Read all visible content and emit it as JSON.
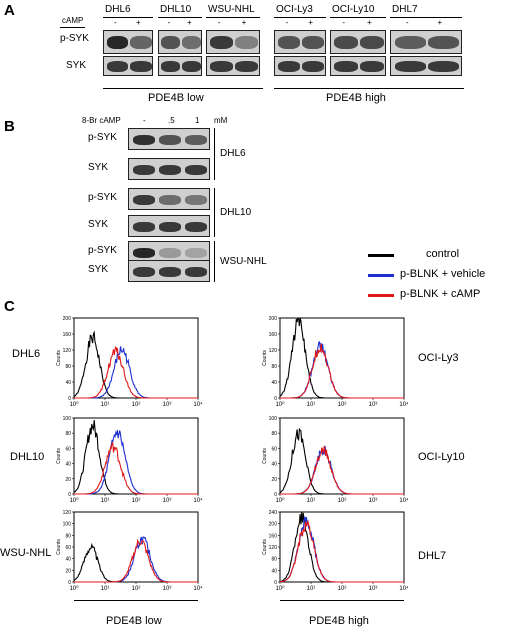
{
  "panels": {
    "a": "A",
    "b": "B",
    "c": "C"
  },
  "panel_a": {
    "row_treatment_label": "cAMP",
    "row_labels": [
      "p-SYK",
      "SYK"
    ],
    "lanes": [
      "-",
      "+"
    ],
    "cell_lines": [
      "DHL6",
      "DHL10",
      "WSU-NHL",
      "OCI-Ly3",
      "OCI-Ly10",
      "DHL7"
    ],
    "groups": [
      "PDE4B low",
      "PDE4B high"
    ]
  },
  "panel_b": {
    "treatment_label": "8-Br cAMP",
    "doses": [
      "-",
      ".5",
      "1"
    ],
    "unit": "mM",
    "row_labels": [
      "p-SYK",
      "SYK"
    ],
    "cell_lines": [
      "DHL6",
      "DHL10",
      "WSU-NHL"
    ]
  },
  "legend": {
    "entries": [
      {
        "label": "control",
        "color": "#000000"
      },
      {
        "label": "p-BLNK + vehicle",
        "color": "#1f2fd0"
      },
      {
        "label": "p-BLNK  + cAMP",
        "color": "#e01818"
      }
    ]
  },
  "panel_c": {
    "ylabel": "Counts",
    "groups": [
      "PDE4B low",
      "PDE4B high"
    ],
    "x_ticks": [
      "10⁰",
      "10¹",
      "10²",
      "10³",
      "10⁴"
    ],
    "left_labels": [
      "DHL6",
      "DHL10",
      "WSU-NHL"
    ],
    "right_labels": [
      "OCI-Ly3",
      "OCI-Ly10",
      "DHL7"
    ]
  },
  "chart_data": [
    {
      "type": "line",
      "name": "DHL6",
      "xscale": "log",
      "xlim": [
        1,
        10000
      ],
      "yticks": [
        0,
        40,
        80,
        120,
        160,
        200
      ],
      "ylim": [
        0,
        200
      ],
      "series": [
        {
          "name": "control",
          "peak_x": 4,
          "peak_y": 150
        },
        {
          "name": "p-BLNK + vehicle",
          "peak_x": 35,
          "peak_y": 120
        },
        {
          "name": "p-BLNK  + cAMP",
          "peak_x": 22,
          "peak_y": 115
        }
      ]
    },
    {
      "type": "line",
      "name": "DHL10",
      "xscale": "log",
      "xlim": [
        1,
        10000
      ],
      "yticks": [
        0,
        20,
        40,
        60,
        80,
        100
      ],
      "ylim": [
        0,
        100
      ],
      "series": [
        {
          "name": "control",
          "peak_x": 4,
          "peak_y": 90
        },
        {
          "name": "p-BLNK + vehicle",
          "peak_x": 25,
          "peak_y": 80
        },
        {
          "name": "p-BLNK  + cAMP",
          "peak_x": 18,
          "peak_y": 62
        }
      ]
    },
    {
      "type": "line",
      "name": "WSU-NHL",
      "xscale": "log",
      "xlim": [
        1,
        10000
      ],
      "yticks": [
        0,
        20,
        40,
        60,
        80,
        100,
        120
      ],
      "ylim": [
        0,
        120
      ],
      "series": [
        {
          "name": "control",
          "peak_x": 3.5,
          "peak_y": 60
        },
        {
          "name": "p-BLNK + vehicle",
          "peak_x": 160,
          "peak_y": 73
        },
        {
          "name": "p-BLNK  + cAMP",
          "peak_x": 140,
          "peak_y": 70
        }
      ]
    },
    {
      "type": "line",
      "name": "OCI-Ly3",
      "xscale": "log",
      "xlim": [
        1,
        10000
      ],
      "yticks": [
        0,
        40,
        80,
        120,
        160,
        200
      ],
      "ylim": [
        0,
        200
      ],
      "series": [
        {
          "name": "control",
          "peak_x": 4,
          "peak_y": 190
        },
        {
          "name": "p-BLNK + vehicle",
          "peak_x": 20,
          "peak_y": 130
        },
        {
          "name": "p-BLNK  + cAMP",
          "peak_x": 20,
          "peak_y": 128
        }
      ]
    },
    {
      "type": "line",
      "name": "OCI-Ly10",
      "xscale": "log",
      "xlim": [
        1,
        10000
      ],
      "yticks": [
        0,
        20,
        40,
        60,
        80,
        100
      ],
      "ylim": [
        0,
        100
      ],
      "series": [
        {
          "name": "control",
          "peak_x": 4,
          "peak_y": 80
        },
        {
          "name": "p-BLNK + vehicle",
          "peak_x": 25,
          "peak_y": 58
        },
        {
          "name": "p-BLNK  + cAMP",
          "peak_x": 25,
          "peak_y": 57
        }
      ]
    },
    {
      "type": "line",
      "name": "DHL7",
      "xscale": "log",
      "xlim": [
        1,
        10000
      ],
      "yticks": [
        0,
        40,
        80,
        120,
        160,
        200,
        240
      ],
      "ylim": [
        0,
        240
      ],
      "series": [
        {
          "name": "control",
          "peak_x": 5,
          "peak_y": 225
        },
        {
          "name": "p-BLNK + vehicle",
          "peak_x": 7,
          "peak_y": 205
        },
        {
          "name": "p-BLNK  + cAMP",
          "peak_x": 7,
          "peak_y": 200
        }
      ]
    }
  ]
}
